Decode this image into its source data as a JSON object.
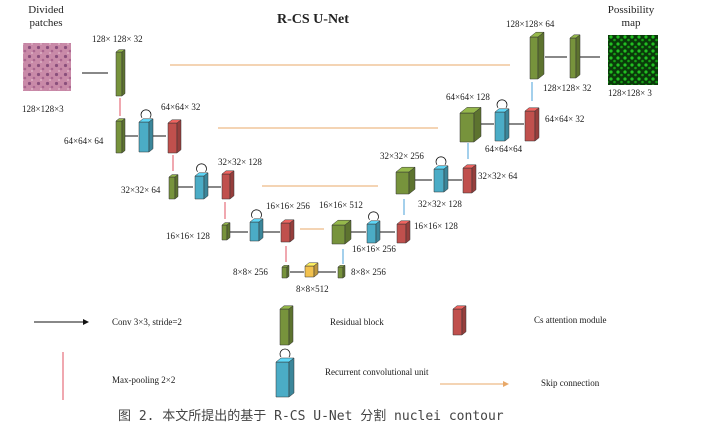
{
  "title": "R-CS U-Net",
  "input_label": "Divided patches",
  "output_label": "Possibility map",
  "dims": {
    "d_in": "128×128×3",
    "d_e0": "128× 128× 32",
    "d_e1a": "64×64× 32",
    "d_e1b": "64×64× 64",
    "d_e2a": "32×32× 128",
    "d_e2b": "32×32× 64",
    "d_e3a": "16×16× 256",
    "d_e3b": "16×16× 128",
    "d_b1": "8×8× 256",
    "d_b2": "8×8×512",
    "d_b3": "8×8× 256",
    "d_d3a": "16×16× 512",
    "d_d3b": "16×16× 256",
    "d_d3c": "16×16× 128",
    "d_d2a": "32×32× 256",
    "d_d2b": "32×32× 128",
    "d_d2c": "32×32× 64",
    "d_d1a": "64×64× 128",
    "d_d1b": "64×64×64",
    "d_d1c": "64×64× 32",
    "d_d0a": "128×128× 64",
    "d_d0b": "128×128× 32",
    "d_out": "128×128× 3"
  },
  "legend": {
    "conv": "Conv 3×3, stride=2",
    "maxpool": "Max-pooling 2×2",
    "residual": "Residual block",
    "recurrent": "Recurrent convolutional unit",
    "cs": "Cs attention module",
    "skip": "Skip connection"
  },
  "caption": "图 2. 本文所提出的基于 R-CS U-Net 分割 nuclei contour",
  "colors": {
    "green": "#77933c",
    "blue": "#4bacc6",
    "red": "#c0504d",
    "yellow": "#f2c14e",
    "maxpool": "#e05060",
    "skip": "#e8a868",
    "upsample": "#4aa0d8",
    "arrow": "#111111"
  }
}
